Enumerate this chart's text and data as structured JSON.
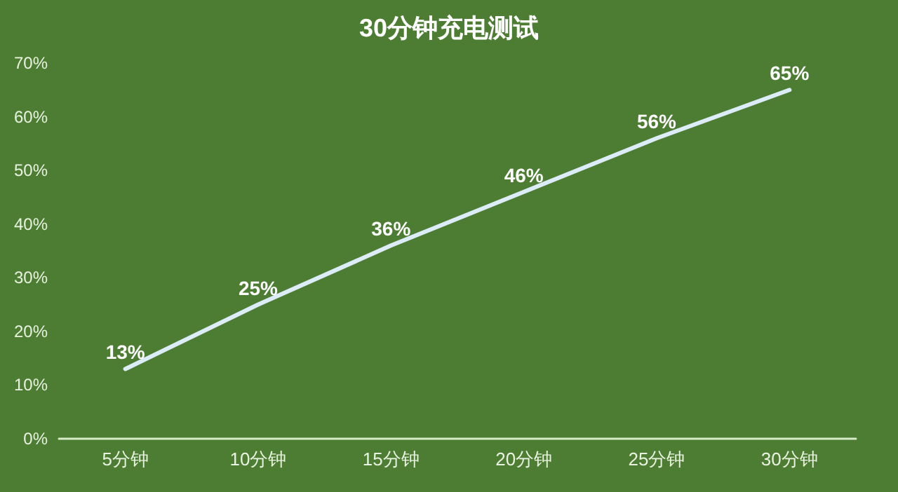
{
  "chart_data": {
    "type": "line",
    "title": "30分钟充电测试",
    "categories": [
      "5分钟",
      "10分钟",
      "15分钟",
      "20分钟",
      "25分钟",
      "30分钟"
    ],
    "series": [
      {
        "color": "#dcecf8",
        "values": [
          13,
          25,
          36,
          46,
          56,
          65
        ],
        "value_labels": [
          "13%",
          "25%",
          "36%",
          "46%",
          "56%",
          "65%"
        ]
      }
    ],
    "ylim": [
      0,
      70
    ],
    "yticks": [
      {
        "value": 0,
        "label": "0%"
      },
      {
        "value": 10,
        "label": "10%"
      },
      {
        "value": 20,
        "label": "20%"
      },
      {
        "value": 30,
        "label": "30%"
      },
      {
        "value": 40,
        "label": "40%"
      },
      {
        "value": 50,
        "label": "50%"
      },
      {
        "value": 60,
        "label": "60%"
      },
      {
        "value": 70,
        "label": "70%"
      }
    ],
    "grid": false,
    "marker": "none",
    "line_style": "solid"
  }
}
